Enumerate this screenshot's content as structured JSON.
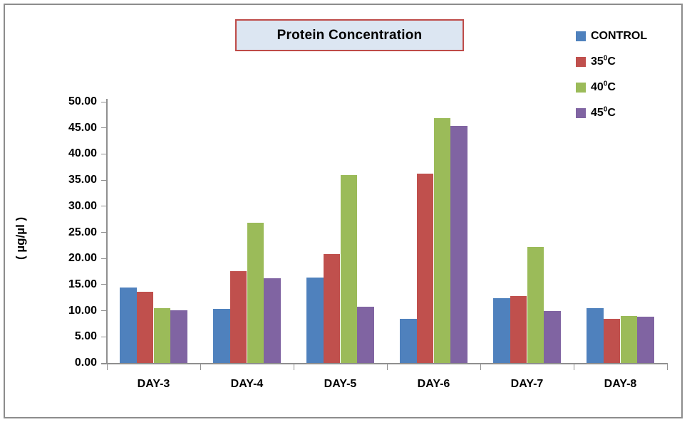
{
  "title": "Protein Concentration",
  "y_axis_title": "( µg/µl )",
  "colors": {
    "frame_border": "#8c8c8c",
    "title_box_bg": "#dce6f2",
    "title_box_border": "#be4b48",
    "axis": "#8f8f8f",
    "text": "#000000",
    "series_blue": "#4f81bd",
    "series_red": "#c0504d",
    "series_green": "#9bbb59",
    "series_purple": "#8064a2"
  },
  "legend": {
    "items": [
      {
        "base": "CONTROL",
        "sup": "",
        "tail": "",
        "color": "#4f81bd"
      },
      {
        "base": "35",
        "sup": "0",
        "tail": "C",
        "color": "#c0504d"
      },
      {
        "base": "40",
        "sup": "0",
        "tail": "C",
        "color": "#9bbb59"
      },
      {
        "base": "45",
        "sup": "0",
        "tail": "C",
        "color": "#8064a2"
      }
    ]
  },
  "chart_data": {
    "type": "bar",
    "title": "Protein Concentration",
    "xlabel": "",
    "ylabel": "( µg/µl )",
    "ylim": [
      0,
      50
    ],
    "ytick_step": 5,
    "ytick_format_decimals": 2,
    "grid": false,
    "legend_position": "right-top",
    "categories": [
      "DAY-3",
      "DAY-4",
      "DAY-5",
      "DAY-6",
      "DAY-7",
      "DAY-8"
    ],
    "series": [
      {
        "name": "CONTROL",
        "color": "#4f81bd",
        "values": [
          14.5,
          10.4,
          16.3,
          8.4,
          12.4,
          10.5
        ]
      },
      {
        "name": "35⁰C",
        "color": "#c0504d",
        "values": [
          13.6,
          17.6,
          20.9,
          36.2,
          12.8,
          8.5
        ]
      },
      {
        "name": "40⁰C",
        "color": "#9bbb59",
        "values": [
          10.5,
          26.8,
          36.0,
          46.8,
          22.2,
          9.0
        ]
      },
      {
        "name": "45⁰C",
        "color": "#8064a2",
        "values": [
          10.1,
          16.2,
          10.7,
          45.3,
          10.0,
          8.8
        ]
      }
    ]
  }
}
